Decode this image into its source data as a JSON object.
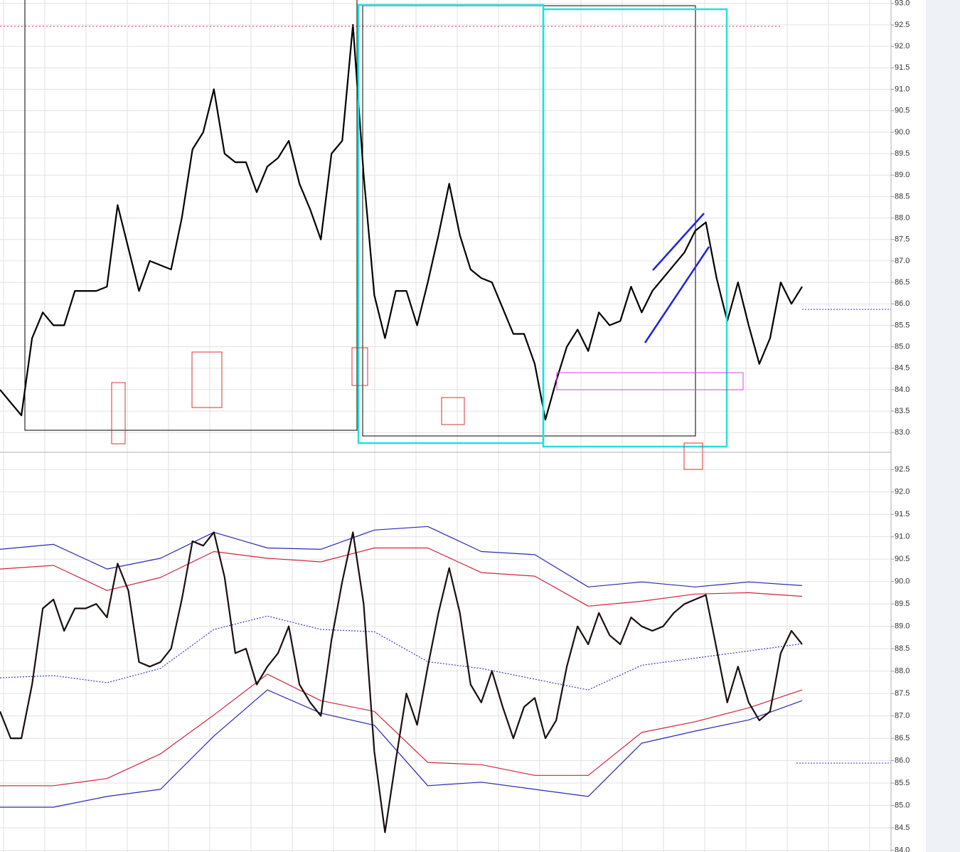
{
  "chart_data": [
    {
      "type": "line",
      "ylim": [
        82.54,
        93.08
      ],
      "yticks": [
        {
          "value": 83,
          "label": "83.0"
        },
        83.5,
        {
          "value": 84,
          "label": "84.0"
        },
        84.5,
        {
          "value": 85,
          "label": "85.0"
        },
        85.5,
        {
          "value": 86,
          "label": "86.0"
        },
        86.5,
        {
          "value": 87,
          "label": "87.0"
        },
        87.5,
        {
          "value": 88,
          "label": "88.0"
        },
        88.5,
        {
          "value": 89,
          "label": "89.0"
        },
        89.5,
        {
          "value": 90,
          "label": "90.0"
        },
        90.5,
        {
          "value": 91,
          "label": "91.0"
        },
        91.5,
        {
          "value": 92,
          "label": "92.0"
        },
        92.5,
        {
          "value": 93,
          "label": "93.0"
        }
      ],
      "grid": true,
      "series": [
        {
          "color": "#000000",
          "values": [
            84.0,
            83.7,
            83.4,
            85.2,
            85.8,
            85.5,
            85.5,
            86.3,
            86.3,
            86.3,
            86.4,
            88.3,
            87.3,
            86.3,
            87.0,
            86.9,
            86.8,
            88.0,
            89.6,
            90.0,
            91.0,
            89.5,
            89.3,
            89.3,
            88.6,
            89.2,
            89.4,
            89.8,
            88.8,
            88.2,
            87.5,
            89.5,
            89.8,
            92.5,
            89.0,
            86.2,
            85.2,
            86.3,
            86.3,
            85.5,
            86.5,
            87.6,
            88.8,
            87.6,
            86.8,
            86.6,
            86.5,
            85.9,
            85.3,
            85.3,
            84.6,
            83.3,
            84.2,
            85.0,
            85.4,
            84.9,
            85.8,
            85.5,
            85.6,
            86.4,
            85.8,
            86.3,
            86.6,
            86.9,
            87.2,
            87.7,
            87.9,
            86.6,
            85.6,
            86.5,
            85.5,
            84.6,
            85.2,
            86.5,
            86.0,
            86.4
          ]
        }
      ]
    },
    {
      "type": "line",
      "ylim": [
        83.96,
        92.87
      ],
      "yticks": [
        {
          "value": 84,
          "label": "84.0"
        },
        84.5,
        {
          "value": 85,
          "label": "85.0"
        },
        85.5,
        {
          "value": 86,
          "label": "86.0"
        },
        86.5,
        {
          "value": 87,
          "label": "87.0"
        },
        87.5,
        {
          "value": 88,
          "label": "88.0"
        },
        88.5,
        {
          "value": 89,
          "label": "89.0"
        },
        89.5,
        {
          "value": 90,
          "label": "90.0"
        },
        90.5,
        {
          "value": 91,
          "label": "91.0"
        },
        91.5,
        {
          "value": 92,
          "label": "92.0"
        },
        92.5
      ],
      "grid": true,
      "series": [
        {
          "color": "#2a2ab0",
          "values": [
            90.72,
            90.83,
            90.28,
            90.52,
            91.1,
            90.75,
            90.72,
            91.15,
            91.23,
            90.67,
            90.6,
            89.88,
            89.99,
            89.88,
            89.99,
            89.91
          ]
        },
        {
          "color": "#d0243c",
          "values": [
            90.28,
            90.36,
            89.8,
            90.09,
            90.67,
            90.52,
            90.44,
            90.75,
            90.75,
            90.2,
            90.12,
            89.45,
            89.56,
            89.72,
            89.75,
            89.67
          ]
        },
        {
          "color": "#3a3ab8",
          "dashed": true,
          "values": [
            87.85,
            87.9,
            87.74,
            88.06,
            88.93,
            89.23,
            88.93,
            88.88,
            88.21,
            88.06,
            87.82,
            87.58,
            88.13,
            88.29,
            88.45,
            88.61
          ]
        },
        {
          "color": "#d0243c",
          "values": [
            85.44,
            85.44,
            85.6,
            86.15,
            87.02,
            87.93,
            87.34,
            87.1,
            85.96,
            85.91,
            85.67,
            85.67,
            86.63,
            86.87,
            87.18,
            87.58
          ]
        },
        {
          "color": "#2a2ab0",
          "values": [
            84.96,
            84.96,
            85.2,
            85.36,
            86.55,
            87.58,
            87.06,
            86.79,
            85.44,
            85.52,
            85.36,
            85.2,
            86.39,
            86.66,
            86.91,
            87.34
          ]
        },
        {
          "color": "#1a0e0e",
          "values": [
            87.1,
            86.5,
            86.5,
            87.7,
            89.4,
            89.6,
            88.9,
            89.4,
            89.4,
            89.5,
            89.2,
            90.4,
            89.8,
            88.2,
            88.1,
            88.2,
            88.5,
            89.6,
            90.9,
            90.8,
            91.1,
            90.1,
            88.4,
            88.5,
            87.7,
            88.1,
            88.4,
            89.0,
            87.7,
            87.3,
            87.0,
            88.7,
            90.0,
            91.1,
            89.5,
            86.2,
            84.4,
            86.0,
            87.5,
            86.8,
            88.1,
            89.3,
            90.3,
            89.3,
            87.7,
            87.3,
            88.0,
            87.2,
            86.5,
            87.2,
            87.4,
            86.5,
            86.9,
            88.1,
            89.0,
            88.6,
            89.3,
            88.8,
            88.6,
            89.2,
            89.0,
            88.9,
            89.0,
            89.3,
            89.5,
            89.6,
            89.7,
            88.5,
            87.3,
            88.1,
            87.3,
            86.9,
            87.1,
            88.4,
            88.9,
            88.6
          ]
        }
      ]
    }
  ]
}
